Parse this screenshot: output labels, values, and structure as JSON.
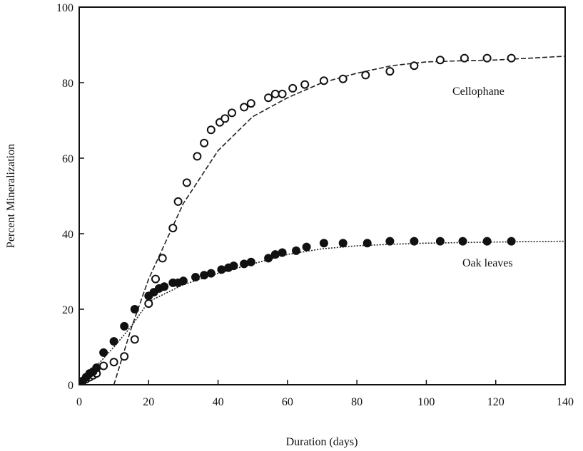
{
  "chart_data": {
    "type": "scatter",
    "title": "",
    "xlabel": "Duration (days)",
    "ylabel": "Percent Mineralization",
    "xlim": [
      0,
      140
    ],
    "ylim": [
      0,
      100
    ],
    "xticks": [
      0,
      20,
      40,
      60,
      80,
      100,
      120,
      140
    ],
    "yticks": [
      0,
      20,
      40,
      60,
      80,
      100
    ],
    "grid": false,
    "series": [
      {
        "name": "Cellophane",
        "marker": "open-circle",
        "points": [
          [
            1,
            1
          ],
          [
            2,
            1.5
          ],
          [
            3,
            2
          ],
          [
            4,
            2.5
          ],
          [
            5,
            3
          ],
          [
            7,
            5
          ],
          [
            10,
            6
          ],
          [
            13,
            7.5
          ],
          [
            16,
            12
          ],
          [
            20,
            21.5
          ],
          [
            22,
            28
          ],
          [
            24,
            33.5
          ],
          [
            27,
            41.5
          ],
          [
            28.5,
            48.5
          ],
          [
            31,
            53.5
          ],
          [
            34,
            60.5
          ],
          [
            36,
            64
          ],
          [
            38,
            67.5
          ],
          [
            40.5,
            69.5
          ],
          [
            42,
            70.5
          ],
          [
            44,
            72
          ],
          [
            47.5,
            73.5
          ],
          [
            49.5,
            74.5
          ],
          [
            54.5,
            76
          ],
          [
            56.5,
            77
          ],
          [
            58.5,
            77
          ],
          [
            61.5,
            78.5
          ],
          [
            65,
            79.5
          ],
          [
            70.5,
            80.5
          ],
          [
            76,
            81
          ],
          [
            82.5,
            82
          ],
          [
            89.5,
            83
          ],
          [
            96.5,
            84.5
          ],
          [
            104,
            86
          ],
          [
            111,
            86.5
          ],
          [
            117.5,
            86.5
          ],
          [
            124.5,
            86.5
          ]
        ],
        "fit": [
          [
            10,
            0
          ],
          [
            15,
            15
          ],
          [
            20,
            28
          ],
          [
            25,
            38
          ],
          [
            30,
            48
          ],
          [
            35,
            55
          ],
          [
            40,
            62
          ],
          [
            50,
            71
          ],
          [
            60,
            76
          ],
          [
            70,
            80
          ],
          [
            80,
            82.5
          ],
          [
            90,
            84.5
          ],
          [
            100,
            85.5
          ],
          [
            110,
            85.8
          ],
          [
            120,
            86
          ],
          [
            130,
            86.5
          ],
          [
            140,
            87
          ]
        ]
      },
      {
        "name": "Oak leaves",
        "marker": "filled-circle",
        "points": [
          [
            1,
            1
          ],
          [
            2,
            2
          ],
          [
            3,
            3
          ],
          [
            4,
            3.5
          ],
          [
            5,
            4.5
          ],
          [
            7,
            8.5
          ],
          [
            10,
            11.5
          ],
          [
            13,
            15.5
          ],
          [
            16,
            20
          ],
          [
            20,
            23.5
          ],
          [
            21.5,
            24.5
          ],
          [
            23,
            25.5
          ],
          [
            24.5,
            26
          ],
          [
            27,
            27
          ],
          [
            28.5,
            27
          ],
          [
            30,
            27.5
          ],
          [
            33.5,
            28.5
          ],
          [
            36,
            29
          ],
          [
            38,
            29.5
          ],
          [
            41,
            30.5
          ],
          [
            43,
            31
          ],
          [
            44.5,
            31.5
          ],
          [
            47.5,
            32
          ],
          [
            49.5,
            32.5
          ],
          [
            54.5,
            33.5
          ],
          [
            56.5,
            34.5
          ],
          [
            58.5,
            35
          ],
          [
            62.5,
            35.5
          ],
          [
            65.5,
            36.5
          ],
          [
            70.5,
            37.5
          ],
          [
            76,
            37.5
          ],
          [
            83,
            37.5
          ],
          [
            89.5,
            38
          ],
          [
            96.5,
            38
          ],
          [
            104,
            38
          ],
          [
            110.5,
            38
          ],
          [
            117.5,
            38
          ],
          [
            124.5,
            38
          ]
        ],
        "fit": [
          [
            0,
            0
          ],
          [
            5,
            5
          ],
          [
            10,
            10
          ],
          [
            15,
            15.5
          ],
          [
            20,
            22
          ],
          [
            30,
            26.5
          ],
          [
            40,
            29.5
          ],
          [
            50,
            32
          ],
          [
            60,
            34.5
          ],
          [
            70,
            36
          ],
          [
            80,
            36.8
          ],
          [
            90,
            37.2
          ],
          [
            100,
            37.5
          ],
          [
            120,
            37.8
          ],
          [
            140,
            38
          ]
        ]
      }
    ]
  }
}
